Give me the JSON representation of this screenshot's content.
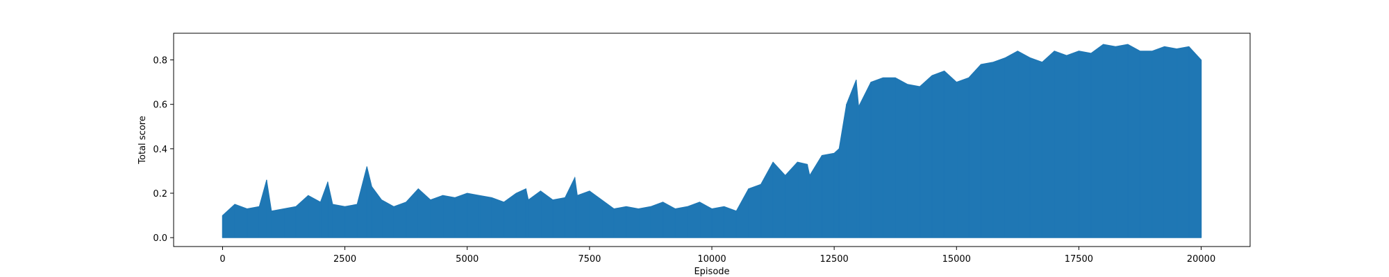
{
  "chart_data": {
    "type": "line",
    "title": "",
    "xlabel": "Episode",
    "ylabel": "Total score",
    "xlim": [
      -1000,
      21000
    ],
    "ylim": [
      -0.04,
      0.92
    ],
    "xticks": [
      0,
      2500,
      5000,
      7500,
      10000,
      12500,
      15000,
      17500,
      20000
    ],
    "xtick_labels": [
      "0",
      "2500",
      "5000",
      "7500",
      "10000",
      "12500",
      "15000",
      "17500",
      "20000"
    ],
    "yticks": [
      0.0,
      0.2,
      0.4,
      0.6,
      0.8
    ],
    "ytick_labels": [
      "0.0",
      "0.2",
      "0.4",
      "0.6",
      "0.8"
    ],
    "grid": false,
    "legend": "none",
    "colors": {
      "series": "#1f77b4",
      "axes": "#000000",
      "background": "#ffffff"
    },
    "series": [
      {
        "name": "",
        "x": [
          0,
          250,
          500,
          750,
          900,
          1000,
          1250,
          1500,
          1750,
          2000,
          2150,
          2250,
          2500,
          2750,
          2950,
          3050,
          3250,
          3500,
          3750,
          4000,
          4250,
          4500,
          4750,
          5000,
          5250,
          5500,
          5750,
          6000,
          6200,
          6250,
          6500,
          6750,
          7000,
          7200,
          7250,
          7500,
          7750,
          8000,
          8250,
          8500,
          8750,
          9000,
          9250,
          9500,
          9750,
          10000,
          10250,
          10500,
          10750,
          11000,
          11250,
          11500,
          11750,
          11950,
          12000,
          12250,
          12500,
          12600,
          12750,
          12950,
          13000,
          13250,
          13500,
          13750,
          14000,
          14250,
          14500,
          14750,
          15000,
          15250,
          15500,
          15750,
          16000,
          16250,
          16500,
          16750,
          17000,
          17250,
          17500,
          17750,
          18000,
          18250,
          18500,
          18750,
          19000,
          19250,
          19500,
          19750,
          20000
        ],
        "y_upper": [
          0.1,
          0.15,
          0.13,
          0.14,
          0.26,
          0.12,
          0.13,
          0.14,
          0.19,
          0.16,
          0.25,
          0.15,
          0.14,
          0.15,
          0.32,
          0.23,
          0.17,
          0.14,
          0.16,
          0.22,
          0.17,
          0.19,
          0.18,
          0.2,
          0.19,
          0.18,
          0.16,
          0.2,
          0.22,
          0.17,
          0.21,
          0.17,
          0.18,
          0.27,
          0.19,
          0.21,
          0.17,
          0.13,
          0.14,
          0.13,
          0.14,
          0.16,
          0.13,
          0.14,
          0.16,
          0.13,
          0.14,
          0.12,
          0.22,
          0.24,
          0.34,
          0.28,
          0.34,
          0.33,
          0.28,
          0.37,
          0.38,
          0.4,
          0.6,
          0.71,
          0.59,
          0.7,
          0.72,
          0.72,
          0.69,
          0.68,
          0.73,
          0.75,
          0.7,
          0.72,
          0.78,
          0.79,
          0.81,
          0.84,
          0.81,
          0.79,
          0.84,
          0.82,
          0.84,
          0.83,
          0.87,
          0.86,
          0.87,
          0.84,
          0.84,
          0.86,
          0.85,
          0.86,
          0.8
        ],
        "y_lower": [
          0.0,
          0.0,
          0.0,
          0.0,
          0.0,
          0.0,
          0.0,
          0.0,
          0.0,
          0.0,
          0.0,
          0.0,
          0.0,
          0.0,
          0.0,
          0.0,
          0.0,
          0.0,
          0.0,
          0.0,
          0.0,
          0.0,
          0.0,
          0.0,
          0.0,
          0.0,
          0.0,
          0.0,
          0.0,
          0.0,
          0.0,
          0.0,
          0.0,
          0.0,
          0.0,
          0.0,
          0.0,
          0.0,
          0.0,
          0.0,
          0.0,
          0.0,
          0.0,
          0.0,
          0.0,
          0.0,
          0.0,
          0.0,
          0.0,
          0.0,
          0.0,
          0.0,
          0.0,
          0.0,
          0.0,
          0.0,
          0.0,
          0.0,
          0.0,
          0.0,
          0.0,
          0.0,
          0.0,
          0.0,
          0.0,
          0.0,
          0.0,
          0.0,
          0.0,
          0.0,
          0.0,
          0.0,
          0.0,
          0.0,
          0.0,
          0.0,
          0.0,
          0.0,
          0.0,
          0.0,
          0.0,
          0.0,
          0.0,
          0.0,
          0.0,
          0.0,
          0.0,
          0.0,
          0.0
        ]
      }
    ]
  }
}
